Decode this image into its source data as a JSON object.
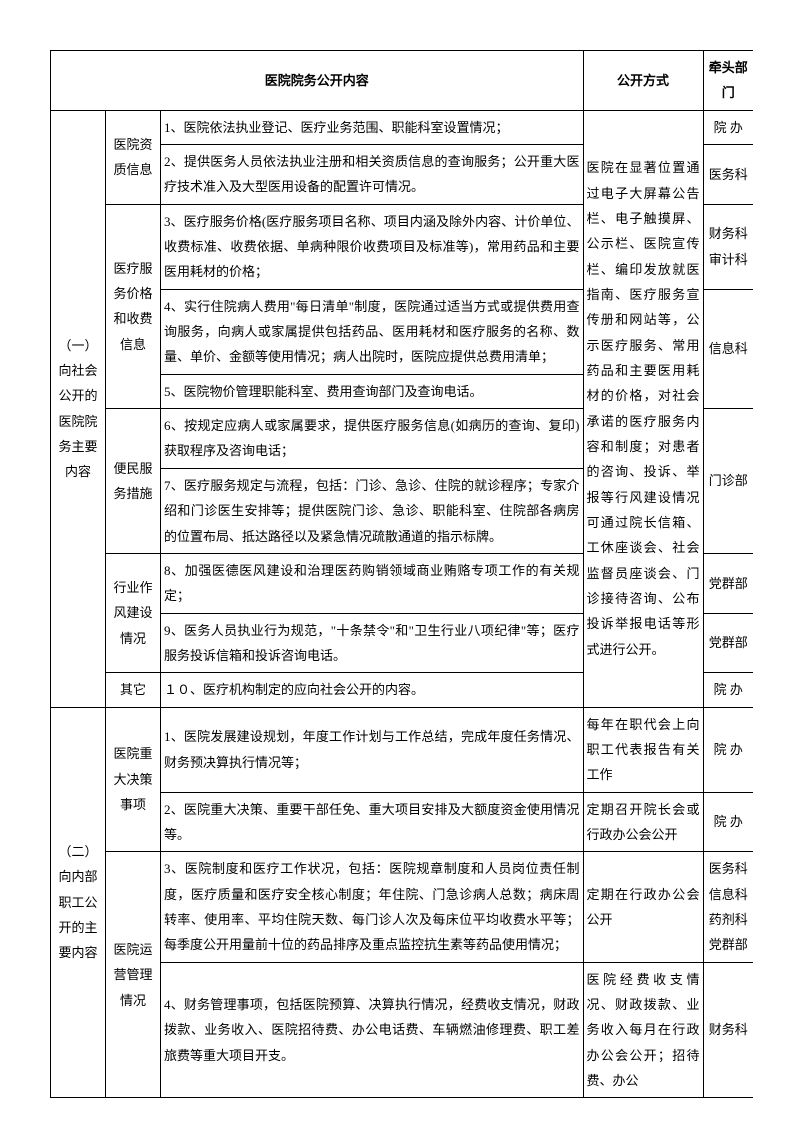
{
  "headers": {
    "content": "医院院务公开内容",
    "method": "公开方式",
    "dept": "牵头部门"
  },
  "sectionA": {
    "title": "（一）向社会公开的医院院务主要内容",
    "method": "医院在显著位置通过电子大屏幕公告栏、电子触摸屏、公示栏、医院宣传栏、编印发放就医指南、医疗服务宣传册和网站等，公示医疗服务、常用药品和主要医用耗材的价格，对社会承诺的医疗服务内容和制度；对患者的咨询、投诉、举报等行风建设情况可通过院长信箱、工休座谈会、社会监督员座谈会、门诊接待咨询、公布投诉举报电话等形式进行公开。",
    "cat1": {
      "name": "医院资质信息",
      "r1": "1、医院依法执业登记、医疗业务范围、职能科室设置情况；",
      "r2": "2、提供医务人员依法执业注册和相关资质信息的查询服务；公开重大医疗技术准入及大型医用设备的配置许可情况。",
      "d1": "院 办",
      "d2": "医务科"
    },
    "cat2": {
      "name": "医疗服务价格和收费信息",
      "r1": "3、医疗服务价格(医疗服务项目名称、项目内涵及除外内容、计价单位、收费标准、收费依据、单病种限价收费项目及标准等)，常用药品和主要医用耗材的价格；",
      "r2": "4、实行住院病人费用\"每日清单\"制度，医院通过适当方式或提供费用查询服务，向病人或家属提供包括药品、医用耗材和医疗服务的名称、数量、单价、金额等使用情况；病人出院时，医院应提供总费用清单；",
      "r3": "5、医院物价管理职能科室、费用查询部门及查询电话。",
      "d1": "财务科审计科",
      "d23": "信息科"
    },
    "cat3": {
      "name": "便民服务措施",
      "r1": "6、按规定应病人或家属要求，提供医疗服务信息(如病历的查询、复印)获取程序及咨询电话；",
      "r2": "7、医疗服务规定与流程，包括：门诊、急诊、住院的就诊程序；专家介绍和门诊医生安排等；提供医院门诊、急诊、职能科室、住院部各病房的位置布局、抵达路径以及紧急情况疏散通道的指示标牌。",
      "d": "门诊部"
    },
    "cat4": {
      "name": "行业作风建设情况",
      "r1": "8、加强医德医风建设和治理医药购销领域商业贿赂专项工作的有关规定；",
      "r2": "9、医务人员执业行为规范，\"十条禁令\"和\"卫生行业八项纪律\"等；医疗服务投诉信箱和投诉咨询电话。",
      "d1": "党群部",
      "d2": "党群部"
    },
    "cat5": {
      "name": "其它",
      "r1": "１０、医疗机构制定的应向社会公开的内容。",
      "d": "院 办"
    }
  },
  "sectionB": {
    "title": "（二）向内部职工公开的主要内容",
    "cat1": {
      "name": "医院重大决策事项",
      "r1": "1、医院发展建设规划，年度工作计划与工作总结，完成年度任务情况、财务预决算执行情况等；",
      "r2": "2、医院重大决策、重要干部任免、重大项目安排及大额度资金使用情况等。",
      "m1": "每年在职代会上向职工代表报告有关工作",
      "m2": "定期召开院长会或行政办公会公开",
      "d1": "院 办",
      "d2": "院 办"
    },
    "cat2": {
      "name": "医院运营管理情况",
      "r1": "3、医院制度和医疗工作状况，包括：医院规章制度和人员岗位责任制度，医疗质量和医疗安全核心制度；年住院、门急诊病人总数；病床周转率、使用率、平均住院天数、每门诊人次及每床位平均收费水平等；每季度公开用量前十位的药品排序及重点监控抗生素等药品使用情况；",
      "r2": "4、财务管理事项，包括医院预算、决算执行情况，经费收支情况，财政拨款、业务收入、医院招待费、办公电话费、车辆燃油修理费、职工差旅费等重大项目开支。",
      "m1": "定期在行政办公会公开",
      "m2": "医院经费收支情况、财政拨款、业务收入每月在行政办公会公开；招待费、办公",
      "d1": "医务科信息科药剂科党群部",
      "d2": "财务科"
    }
  },
  "style": {
    "border_color": "#000000",
    "bg_color": "#ffffff",
    "font_size": 13
  }
}
